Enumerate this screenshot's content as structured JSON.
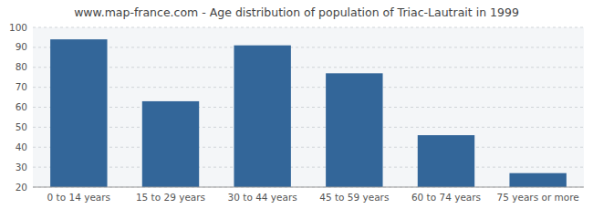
{
  "chart_data": {
    "type": "bar",
    "title": "www.map-france.com - Age distribution of population of Triac-Lautrait in 1999",
    "categories": [
      "0 to 14 years",
      "15 to 29 years",
      "30 to 44 years",
      "45 to 59 years",
      "60 to 74 years",
      "75 years or more"
    ],
    "values": [
      94,
      63,
      91,
      77,
      46,
      27
    ],
    "color": "#336699",
    "ylim": [
      20,
      100
    ],
    "yticks": [
      20,
      30,
      40,
      50,
      60,
      70,
      80,
      90,
      100
    ],
    "grid": true
  }
}
